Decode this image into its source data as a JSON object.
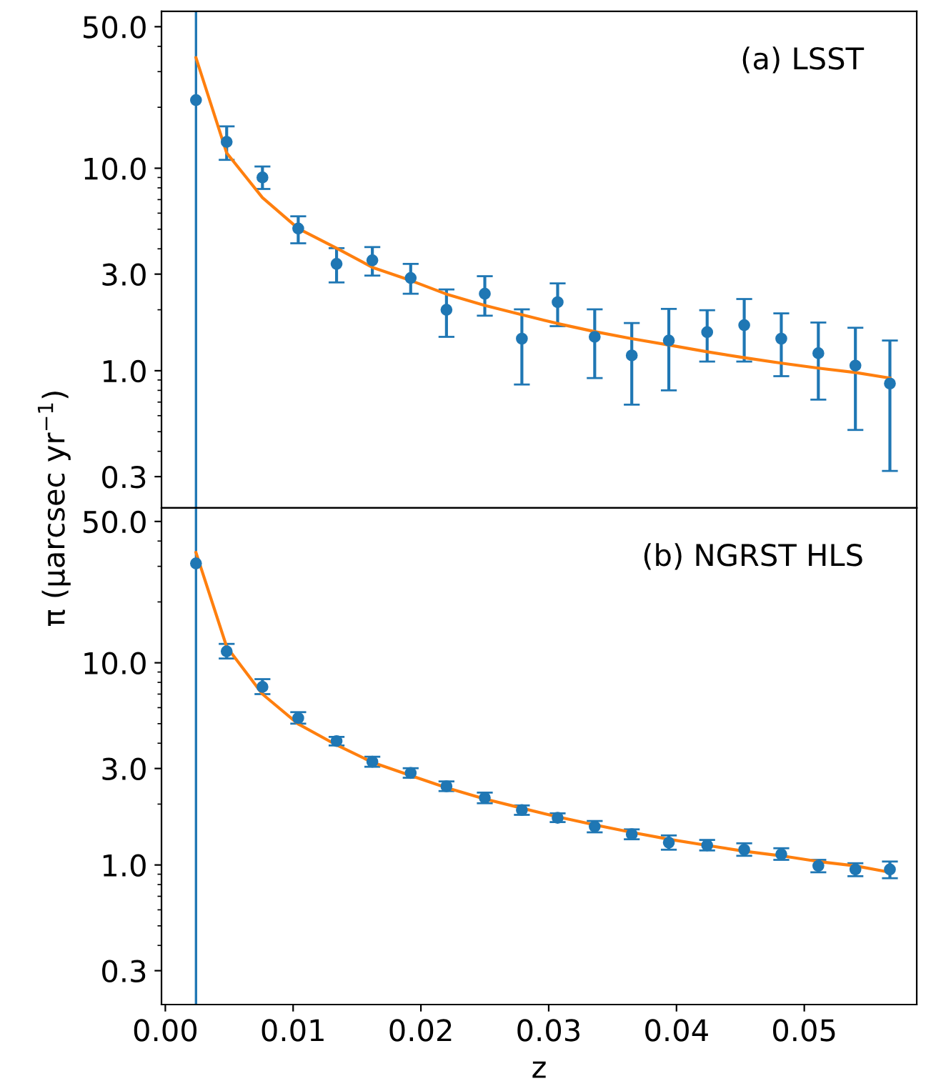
{
  "chart_data": [
    {
      "type": "scatter",
      "annotations": [
        "(a) LSST"
      ],
      "ylabel": "π (μarcsec yr$^{−1}$)",
      "log": "y",
      "xlim": [
        -0.0003,
        0.0588
      ],
      "ylim": [
        0.21,
        59.5
      ],
      "xticks": [
        {
          "value": 0.0,
          "label": null
        },
        {
          "value": 0.01,
          "label": null
        },
        {
          "value": 0.02,
          "label": null
        },
        {
          "value": 0.03,
          "label": null
        },
        {
          "value": 0.04,
          "label": null
        },
        {
          "value": 0.05,
          "label": null
        }
      ],
      "yticks": [
        {
          "value": 0.3,
          "label": "0.3"
        },
        {
          "value": 1,
          "label": "1.0"
        },
        {
          "value": 3,
          "label": "3.0"
        },
        {
          "value": 10,
          "label": "10.0"
        },
        {
          "value": 50,
          "label": "50.0"
        }
      ],
      "tick_labels": "y",
      "grid": false,
      "legend": false,
      "ref_lines": [
        {
          "axis": "x",
          "value": 0.0024,
          "color": "#1f77b4"
        }
      ],
      "x": [
        0.0024,
        0.0048,
        0.0076,
        0.0104,
        0.0134,
        0.0162,
        0.0192,
        0.022,
        0.025,
        0.0279,
        0.0307,
        0.0336,
        0.0365,
        0.0394,
        0.0424,
        0.0453,
        0.0482,
        0.0511,
        0.054,
        0.0567
      ],
      "series": [
        {
          "color": "#1f77b4",
          "marker": "circle",
          "values": [
            21.7,
            13.5,
            9.0,
            5.04,
            3.37,
            3.51,
            2.87,
            2.0,
            2.4,
            1.44,
            2.18,
            1.47,
            1.19,
            1.41,
            1.55,
            1.68,
            1.44,
            1.22,
            1.06,
            0.865
          ],
          "errors": [
            null,
            [
              11.0,
              16.1
            ],
            [
              7.9,
              10.2
            ],
            [
              4.26,
              5.79
            ],
            [
              2.73,
              4.03
            ],
            [
              2.95,
              4.08
            ],
            [
              2.4,
              3.37
            ],
            [
              1.47,
              2.52
            ],
            [
              1.87,
              2.93
            ],
            [
              0.855,
              2.01
            ],
            [
              1.66,
              2.7
            ],
            [
              0.92,
              2.01
            ],
            [
              0.68,
              1.72
            ],
            [
              0.8,
              2.02
            ],
            [
              1.11,
              1.99
            ],
            [
              1.11,
              2.26
            ],
            [
              0.94,
              1.92
            ],
            [
              0.72,
              1.73
            ],
            [
              0.51,
              1.63
            ],
            [
              0.32,
              1.41
            ]
          ]
        },
        {
          "type": "line",
          "color": "#ff7f0e",
          "marker": "none",
          "line_style": "solid",
          "values": [
            35.1,
            11.9,
            7.16,
            5.04,
            4.03,
            3.24,
            2.79,
            2.39,
            2.1,
            1.89,
            1.71,
            1.56,
            1.44,
            1.34,
            1.24,
            1.16,
            1.09,
            1.03,
            0.98,
            0.92
          ]
        }
      ]
    },
    {
      "type": "scatter",
      "annotations": [
        "(b) NGRST HLS"
      ],
      "xlabel": "z",
      "log": "y",
      "xlim": [
        -0.0003,
        0.0588
      ],
      "ylim": [
        0.204,
        58.3
      ],
      "xticks": [
        {
          "value": 0.0,
          "label": "0.00"
        },
        {
          "value": 0.01,
          "label": "0.01"
        },
        {
          "value": 0.02,
          "label": "0.02"
        },
        {
          "value": 0.03,
          "label": "0.03"
        },
        {
          "value": 0.04,
          "label": "0.04"
        },
        {
          "value": 0.05,
          "label": "0.05"
        }
      ],
      "yticks": [
        {
          "value": 0.3,
          "label": "0.3"
        },
        {
          "value": 1,
          "label": "1.0"
        },
        {
          "value": 3,
          "label": "3.0"
        },
        {
          "value": 10,
          "label": "10.0"
        },
        {
          "value": 50,
          "label": "50.0"
        }
      ],
      "grid": false,
      "legend": false,
      "ref_lines": [
        {
          "axis": "x",
          "value": 0.0024,
          "color": "#1f77b4"
        }
      ],
      "x": [
        0.0024,
        0.0048,
        0.0076,
        0.0104,
        0.0134,
        0.0162,
        0.0192,
        0.022,
        0.025,
        0.0279,
        0.0307,
        0.0336,
        0.0365,
        0.0394,
        0.0424,
        0.0453,
        0.0482,
        0.0511,
        0.054,
        0.0567
      ],
      "series": [
        {
          "color": "#1f77b4",
          "marker": "circle",
          "values": [
            31.0,
            11.4,
            7.6,
            5.33,
            4.1,
            3.24,
            2.85,
            2.45,
            2.15,
            1.87,
            1.71,
            1.55,
            1.42,
            1.29,
            1.25,
            1.19,
            1.13,
            0.99,
            0.95,
            0.95
          ],
          "errors": [
            null,
            [
              10.5,
              12.4
            ],
            [
              7.0,
              8.3
            ],
            [
              5.0,
              5.7
            ],
            [
              3.9,
              4.3
            ],
            [
              3.06,
              3.43
            ],
            [
              2.7,
              3.01
            ],
            [
              2.32,
              2.59
            ],
            [
              2.02,
              2.28
            ],
            [
              1.77,
              1.97
            ],
            [
              1.63,
              1.8
            ],
            [
              1.45,
              1.65
            ],
            [
              1.34,
              1.5
            ],
            [
              1.19,
              1.4
            ],
            [
              1.18,
              1.33
            ],
            [
              1.11,
              1.28
            ],
            [
              1.06,
              1.21
            ],
            [
              0.92,
              1.06
            ],
            [
              0.88,
              1.02
            ],
            [
              0.86,
              1.04
            ]
          ]
        },
        {
          "type": "line",
          "color": "#ff7f0e",
          "marker": "none",
          "line_style": "solid",
          "values": [
            35.1,
            12.0,
            7.0,
            4.98,
            3.92,
            3.22,
            2.77,
            2.41,
            2.12,
            1.91,
            1.73,
            1.58,
            1.45,
            1.34,
            1.25,
            1.17,
            1.11,
            1.04,
            0.99,
            0.92
          ]
        }
      ]
    }
  ]
}
